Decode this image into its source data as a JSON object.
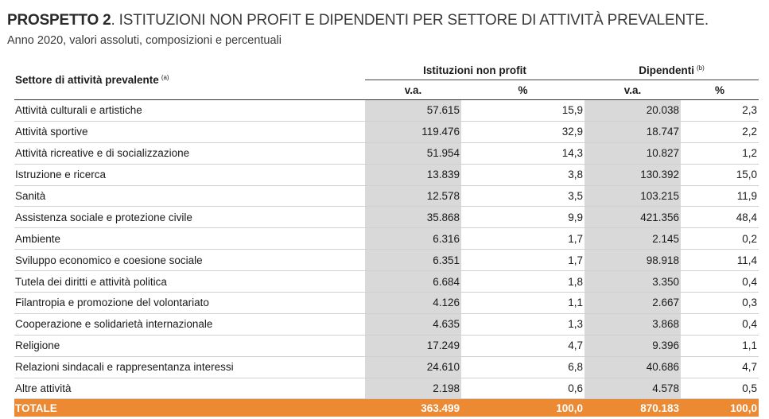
{
  "title": {
    "bold": "PROSPETTO 2",
    "rest": ". ISTITUZIONI NON PROFIT E DIPENDENTI PER SETTORE DI ATTIVITÀ PREVALENTE."
  },
  "subtitle": "Anno 2020, valori assoluti, composizioni e percentuali",
  "table": {
    "row_header": "Settore di attività prevalente",
    "row_header_note": "(a)",
    "group1": "Istituzioni non profit",
    "group2": "Dipendenti",
    "group2_note": "(b)",
    "sub_va": "v.a.",
    "sub_pct": "%",
    "rows": [
      {
        "label": "Attività culturali e artistiche",
        "ist_va": "57.615",
        "ist_pct": "15,9",
        "dip_va": "20.038",
        "dip_pct": "2,3"
      },
      {
        "label": "Attività sportive",
        "ist_va": "119.476",
        "ist_pct": "32,9",
        "dip_va": "18.747",
        "dip_pct": "2,2"
      },
      {
        "label": "Attività ricreative e di socializzazione",
        "ist_va": "51.954",
        "ist_pct": "14,3",
        "dip_va": "10.827",
        "dip_pct": "1,2"
      },
      {
        "label": "Istruzione e ricerca",
        "ist_va": "13.839",
        "ist_pct": "3,8",
        "dip_va": "130.392",
        "dip_pct": "15,0"
      },
      {
        "label": "Sanità",
        "ist_va": "12.578",
        "ist_pct": "3,5",
        "dip_va": "103.215",
        "dip_pct": "11,9"
      },
      {
        "label": "Assistenza sociale e protezione civile",
        "ist_va": "35.868",
        "ist_pct": "9,9",
        "dip_va": "421.356",
        "dip_pct": "48,4"
      },
      {
        "label": "Ambiente",
        "ist_va": "6.316",
        "ist_pct": "1,7",
        "dip_va": "2.145",
        "dip_pct": "0,2"
      },
      {
        "label": "Sviluppo economico e coesione sociale",
        "ist_va": "6.351",
        "ist_pct": "1,7",
        "dip_va": "98.918",
        "dip_pct": "11,4"
      },
      {
        "label": "Tutela dei diritti e attività politica",
        "ist_va": "6.684",
        "ist_pct": "1,8",
        "dip_va": "3.350",
        "dip_pct": "0,4"
      },
      {
        "label": "Filantropia e promozione del volontariato",
        "ist_va": "4.126",
        "ist_pct": "1,1",
        "dip_va": "2.667",
        "dip_pct": "0,3"
      },
      {
        "label": "Cooperazione e solidarietà internazionale",
        "ist_va": "4.635",
        "ist_pct": "1,3",
        "dip_va": "3.868",
        "dip_pct": "0,4"
      },
      {
        "label": "Religione",
        "ist_va": "17.249",
        "ist_pct": "4,7",
        "dip_va": "9.396",
        "dip_pct": "1,1"
      },
      {
        "label": "Relazioni sindacali e rappresentanza interessi",
        "ist_va": "24.610",
        "ist_pct": "6,8",
        "dip_va": "40.686",
        "dip_pct": "4,7"
      },
      {
        "label": "Altre attività",
        "ist_va": "2.198",
        "ist_pct": "0,6",
        "dip_va": "4.578",
        "dip_pct": "0,5"
      }
    ],
    "total": {
      "label": "TOTALE",
      "ist_va": "363.499",
      "ist_pct": "100,0",
      "dip_va": "870.183",
      "dip_pct": "100,0"
    }
  },
  "colors": {
    "total_bg": "#ec8a34",
    "shade": "#d9d9d9"
  }
}
